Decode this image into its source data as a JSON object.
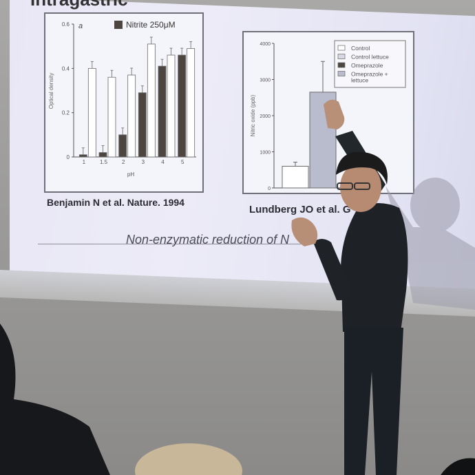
{
  "slide": {
    "title": "Intragastric",
    "subtitle": "Non-enzymatic reduction of N",
    "left_caption": "Benjamin N et al. Nature. 1994",
    "right_caption": "Lundberg JO et al. G"
  },
  "chart_data": [
    {
      "type": "bar",
      "panel_letter": "a",
      "legend": "Nitrite 250μM",
      "ylabel": "Optical density",
      "xlabel": "pH",
      "categories": [
        "1",
        "1.5",
        "2",
        "3",
        "4",
        "5"
      ],
      "yticks": [
        "0",
        "0.2",
        "0.4",
        "0.6"
      ],
      "ylim": [
        0,
        0.6
      ],
      "series": [
        {
          "name": "Nitrite 250μM",
          "color": "#4d4640",
          "values": [
            0.01,
            0.02,
            0.1,
            0.29,
            0.41,
            0.46
          ]
        },
        {
          "name": "",
          "color": "#ffffff",
          "values": [
            0.4,
            0.36,
            0.37,
            0.51,
            0.46,
            0.49
          ]
        }
      ]
    },
    {
      "type": "bar",
      "ylabel": "Nitric oxide (ppb)",
      "yticks": [
        "0",
        "1000",
        "2000",
        "3000",
        "4000"
      ],
      "ylim": [
        0,
        4000
      ],
      "legend_entries": [
        "Control",
        "Control lettuce",
        "Omeprazole",
        "Omeprazole + lettuce"
      ],
      "series": [
        {
          "name": "Control",
          "color": "#ffffff",
          "value": 600
        },
        {
          "name": "Omeprazole + lettuce",
          "color": "#b9bccd",
          "value": 2650
        }
      ]
    }
  ]
}
